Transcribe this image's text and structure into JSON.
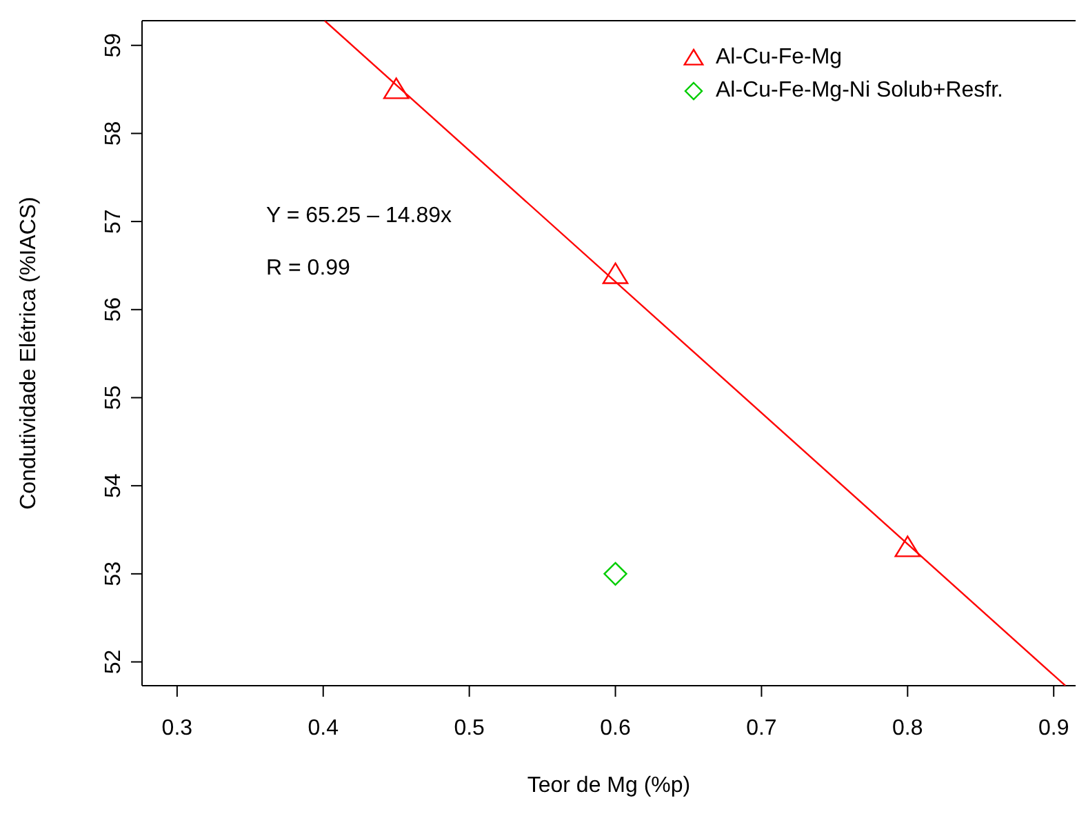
{
  "chart_data": {
    "type": "scatter",
    "xlabel": "Teor de Mg (%p)",
    "ylabel": "Condutividade Elétrica (%IACS)",
    "xlim": [
      0.276,
      0.915
    ],
    "xticks": [
      0.3,
      0.4,
      0.5,
      0.6,
      0.7,
      0.8,
      0.9
    ],
    "ylim": [
      51.73,
      59.28
    ],
    "yticks": [
      52,
      53,
      54,
      55,
      56,
      57,
      58,
      59
    ],
    "legend": "top right",
    "annotations": [
      "Y = 65.25 – 14.89x",
      "R = 0.99"
    ],
    "series": [
      {
        "name": "Al-Cu-Fe-Mg",
        "color": "#ff0000",
        "marker": "triangle",
        "x": [
          0.45,
          0.6,
          0.8
        ],
        "values": [
          58.5,
          56.4,
          53.3
        ]
      },
      {
        "name": "Al-Cu-Fe-Mg-Ni Solub+Resfr.",
        "color": "#00cd00",
        "marker": "diamond",
        "x": [
          0.6
        ],
        "values": [
          53.0
        ]
      },
      {
        "type": "line",
        "color": "#ff0000",
        "marker": "none",
        "line_style": "solid",
        "x": [
          0.401,
          0.908
        ],
        "values": [
          59.28,
          51.73
        ]
      }
    ]
  }
}
